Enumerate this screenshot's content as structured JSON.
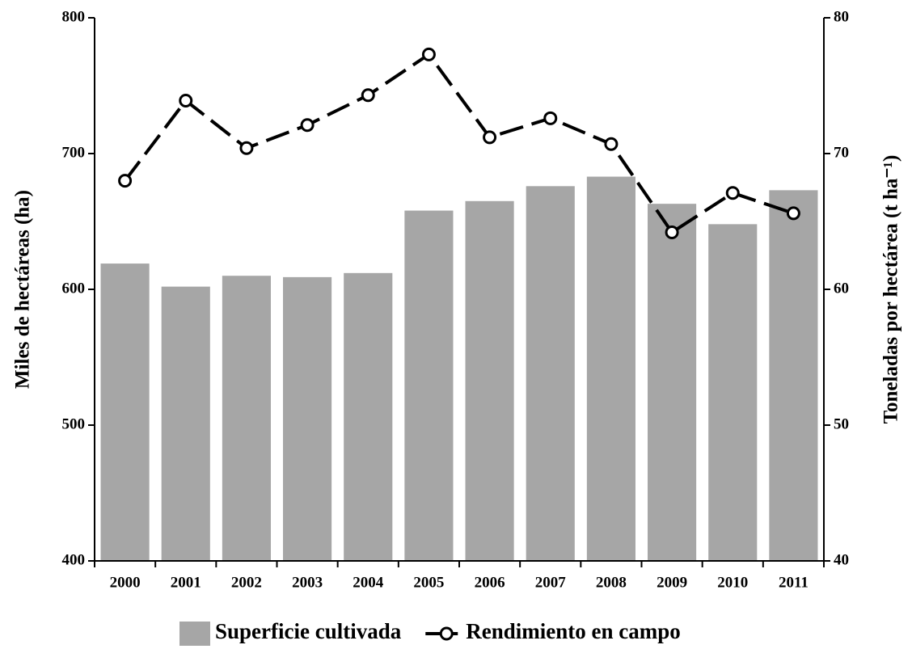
{
  "chart_data": {
    "type": "bar_line",
    "y_label": "Miles de hectáreas (ha)",
    "y2_label": "Toneladas  por hectárea  (t ha⁻¹)",
    "categories": [
      "2000",
      "2001",
      "2002",
      "2003",
      "2004",
      "2005",
      "2006",
      "2007",
      "2008",
      "2009",
      "2010",
      "2011"
    ],
    "series": [
      {
        "name": "Superficie cultivada",
        "type": "bar",
        "color": "#a6a6a6",
        "values": [
          619,
          602,
          610,
          609,
          612,
          658,
          665,
          676,
          683,
          663,
          648,
          673
        ]
      },
      {
        "name": "Rendimiento en campo",
        "type": "line",
        "axis": "y2",
        "color": "#000000",
        "values": [
          68.0,
          73.9,
          70.4,
          72.1,
          74.3,
          77.3,
          71.2,
          72.6,
          70.7,
          64.2,
          67.1,
          65.6
        ]
      }
    ],
    "ylim": [
      400,
      800
    ],
    "yticks": [
      400,
      500,
      600,
      700,
      800
    ],
    "y2lim": [
      40,
      80
    ],
    "y2ticks": [
      40,
      50,
      60,
      70,
      80
    ],
    "legend": "bottom"
  }
}
